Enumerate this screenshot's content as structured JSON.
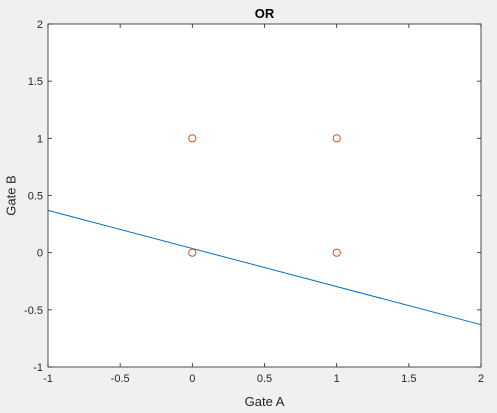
{
  "chart_data": {
    "type": "scatter",
    "title": "OR",
    "xlabel": "Gate A",
    "ylabel": "Gate B",
    "xlim": [
      -1,
      2
    ],
    "ylim": [
      -1,
      2
    ],
    "xticks": [
      -1,
      -0.5,
      0,
      0.5,
      1,
      1.5,
      2
    ],
    "xtick_labels": [
      "-1",
      "-0.5",
      "0",
      "0.5",
      "1",
      "1.5",
      "2"
    ],
    "yticks": [
      -1,
      -0.5,
      0,
      0.5,
      1,
      1.5,
      2
    ],
    "ytick_labels": [
      "-1",
      "-0.5",
      "0",
      "0.5",
      "1",
      "1.5",
      "2"
    ],
    "grid": false,
    "points": {
      "x": [
        0,
        1,
        0,
        1
      ],
      "y": [
        1,
        1,
        0,
        0
      ],
      "marker": "circle-open",
      "color": "#d95319"
    },
    "line": {
      "x": [
        -1,
        2
      ],
      "y": [
        0.37,
        -0.63
      ],
      "color": "#0072bd"
    }
  },
  "colors": {
    "background": "#f0f0f0",
    "axes_background": "#ffffff",
    "axis": "#262626"
  }
}
